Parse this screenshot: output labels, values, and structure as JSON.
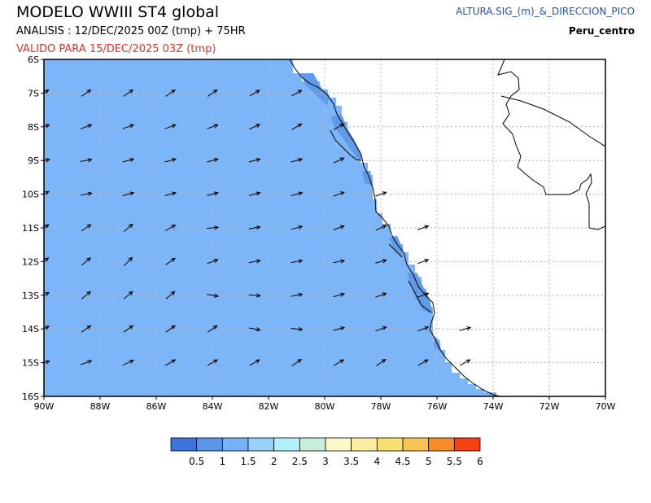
{
  "header": {
    "title": "MODELO WWIII ST4 global",
    "analysis": "ANALISIS : 12/DEC/2025 00Z  (tmp) + 75HR",
    "valid": "VALIDO PARA  15/DEC/2025 03Z  (tmp)",
    "variable": "ALTURA.SIG_(m)_&_DIRECCION_PICO",
    "region": "Peru_centro"
  },
  "map": {
    "lon_range": [
      -90,
      -70
    ],
    "lat_range": [
      -16,
      -6
    ],
    "x_ticks": [
      "90W",
      "88W",
      "86W",
      "84W",
      "82W",
      "80W",
      "78W",
      "76W",
      "74W",
      "72W",
      "70W"
    ],
    "y_ticks": [
      "6S",
      "7S",
      "8S",
      "9S",
      "10S",
      "11S",
      "12S",
      "13S",
      "14S",
      "15S",
      "16S"
    ],
    "ocean_fill_color": "#7db6f8",
    "nearshore_fill_color": "#5f9ae8",
    "arrow_color": "#000000",
    "gridlines": "dotted"
  },
  "colorbar": {
    "labels": [
      "0.5",
      "1",
      "1.5",
      "2",
      "2.5",
      "3",
      "3.5",
      "4",
      "4.5",
      "5",
      "5.5",
      "6"
    ],
    "colors": [
      "#3a74dc",
      "#5a96ea",
      "#78b2f6",
      "#98d2fc",
      "#b2f0fc",
      "#c8eedc",
      "#fafac8",
      "#fceea0",
      "#fae070",
      "#f8c454",
      "#f88c28",
      "#f84010"
    ]
  },
  "chart_data": {
    "type": "heatmap",
    "title": "MODELO WWIII ST4 global",
    "variable": "ALTURA.SIG_(m)_&_DIRECCION_PICO",
    "region": "Peru_centro",
    "xlabel": "",
    "ylabel": "",
    "xlim": [
      -90,
      -70
    ],
    "ylim": [
      -16,
      -6
    ],
    "offshore_value_class": "1 - 1.5",
    "nearshore_value_class": "0.5 - 1",
    "direction_arrows": [
      {
        "lat": -7,
        "azimuth_deg": [
          55,
          55,
          55,
          55,
          55,
          60,
          60
        ]
      },
      {
        "lat": -8,
        "azimuth_deg": [
          70,
          70,
          70,
          70,
          70,
          65,
          60,
          60
        ]
      },
      {
        "lat": -9,
        "azimuth_deg": [
          80,
          80,
          75,
          75,
          75,
          75,
          75,
          65
        ]
      },
      {
        "lat": -10,
        "azimuth_deg": [
          60,
          80,
          75,
          75,
          75,
          75,
          75,
          70,
          70
        ]
      },
      {
        "lat": -11,
        "azimuth_deg": [
          55,
          55,
          50,
          60,
          85,
          80,
          75,
          70,
          65,
          70
        ]
      },
      {
        "lat": -12,
        "azimuth_deg": [
          50,
          50,
          45,
          55,
          70,
          80,
          80,
          80,
          75,
          70
        ]
      },
      {
        "lat": -13,
        "azimuth_deg": [
          60,
          50,
          50,
          50,
          100,
          95,
          80,
          75,
          70,
          70
        ]
      },
      {
        "lat": -14,
        "azimuth_deg": [
          60,
          55,
          55,
          55,
          55,
          100,
          95,
          75,
          70,
          70,
          75
        ]
      },
      {
        "lat": -15,
        "azimuth_deg": [
          75,
          70,
          65,
          60,
          60,
          60,
          55,
          60,
          55,
          60,
          60
        ]
      }
    ]
  }
}
